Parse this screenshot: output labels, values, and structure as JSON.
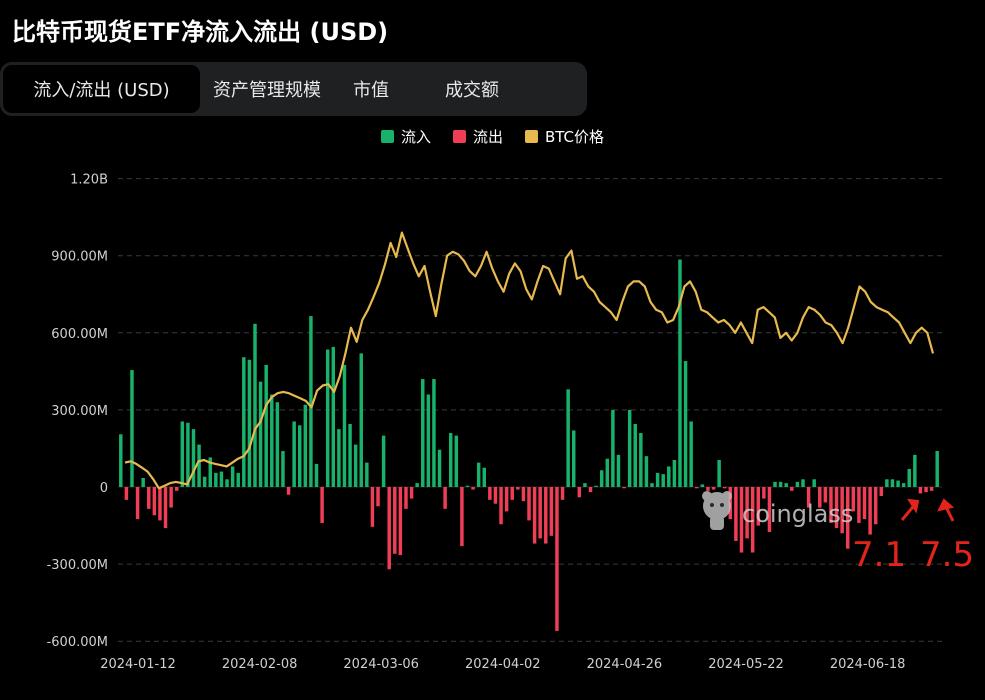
{
  "page": {
    "title": "比特币现货ETF净流入流出 (USD)"
  },
  "tabs": [
    {
      "label": "流入/流出 (USD)",
      "active": true
    },
    {
      "label": "资产管理规模",
      "active": false
    },
    {
      "label": "市值",
      "active": false
    },
    {
      "label": "成交额",
      "active": false
    }
  ],
  "legend": {
    "inflow": "流入",
    "outflow": "流出",
    "price": "BTC价格"
  },
  "watermark": {
    "text": "coinglass",
    "icon": "coinglass-logo-icon"
  },
  "annotations": [
    {
      "text": "7.1"
    },
    {
      "text": "7.5"
    }
  ],
  "colors": {
    "inflow": "#18b26b",
    "outflow": "#f03e57",
    "price": "#e8b94f",
    "grid": "#3a3a3a",
    "annotation": "#e3241b"
  },
  "chart_data": {
    "type": "bar",
    "title": "比特币现货ETF净流入流出 (USD)",
    "ylim": [
      -600000000,
      1200000000
    ],
    "yticks": [
      {
        "value": 1200000000,
        "label": "1.20B"
      },
      {
        "value": 900000000,
        "label": "900.00M"
      },
      {
        "value": 600000000,
        "label": "600.00M"
      },
      {
        "value": 300000000,
        "label": "300.00M"
      },
      {
        "value": 0,
        "label": "0"
      },
      {
        "value": -300000000,
        "label": "-300.00M"
      },
      {
        "value": -600000000,
        "label": "-600.00M"
      }
    ],
    "xticks": [
      {
        "index": 0,
        "label": "2024-01-12"
      },
      {
        "index": 16,
        "label": "2024-02-08"
      },
      {
        "index": 32,
        "label": "2024-03-06"
      },
      {
        "index": 48,
        "label": "2024-04-02"
      },
      {
        "index": 64,
        "label": "2024-04-26"
      },
      {
        "index": 80,
        "label": "2024-05-22"
      },
      {
        "index": 96,
        "label": "2024-06-18"
      }
    ],
    "grid": true,
    "legend_position": "top-center",
    "series": [
      {
        "name": "流入/流出",
        "kind": "bar",
        "values": [
          205,
          -50,
          455,
          -125,
          35,
          -85,
          -110,
          -130,
          -160,
          -80,
          -15,
          255,
          250,
          225,
          165,
          40,
          115,
          55,
          60,
          30,
          80,
          55,
          505,
          495,
          635,
          410,
          475,
          360,
          330,
          140,
          -30,
          255,
          240,
          320,
          665,
          90,
          -140,
          535,
          545,
          225,
          475,
          245,
          165,
          520,
          95,
          -155,
          -75,
          200,
          -320,
          -260,
          -265,
          -85,
          -45,
          15,
          420,
          360,
          420,
          145,
          -85,
          210,
          200,
          -230,
          5,
          -10,
          95,
          75,
          -50,
          -65,
          -145,
          -95,
          -50,
          -10,
          -55,
          -130,
          -220,
          -200,
          -220,
          -190,
          -560,
          -50,
          380,
          220,
          -40,
          15,
          -20,
          5,
          65,
          110,
          300,
          125,
          -5,
          300,
          245,
          210,
          120,
          15,
          55,
          50,
          80,
          105,
          885,
          490,
          255,
          -5,
          10,
          -15,
          -10,
          105,
          -5,
          -125,
          -210,
          -255,
          -200,
          -255,
          -150,
          -45,
          -175,
          20,
          20,
          15,
          -15,
          20,
          30,
          -80,
          30,
          -80,
          -60,
          -140,
          -160,
          -180,
          -240,
          -95,
          -140,
          -125,
          -185,
          -145,
          -35,
          30,
          30,
          25,
          15,
          70,
          125,
          -25,
          -20,
          -15,
          140
        ]
      },
      {
        "name": "BTC价格",
        "kind": "line",
        "values": [
          95,
          100,
          90,
          75,
          60,
          30,
          -5,
          5,
          15,
          20,
          15,
          10,
          55,
          100,
          105,
          95,
          90,
          85,
          80,
          95,
          110,
          120,
          150,
          225,
          255,
          320,
          350,
          365,
          370,
          365,
          355,
          345,
          335,
          310,
          375,
          395,
          400,
          370,
          430,
          520,
          620,
          565,
          650,
          690,
          740,
          795,
          865,
          950,
          895,
          990,
          930,
          870,
          820,
          860,
          760,
          665,
          790,
          900,
          915,
          905,
          880,
          840,
          820,
          860,
          915,
          850,
          800,
          760,
          830,
          870,
          840,
          770,
          730,
          800,
          860,
          850,
          800,
          750,
          890,
          920,
          810,
          820,
          780,
          760,
          720,
          700,
          680,
          650,
          720,
          780,
          800,
          800,
          780,
          720,
          690,
          680,
          640,
          650,
          700,
          780,
          800,
          760,
          690,
          680,
          660,
          640,
          650,
          630,
          600,
          640,
          600,
          560,
          690,
          700,
          680,
          660,
          580,
          600,
          570,
          600,
          660,
          700,
          690,
          670,
          640,
          630,
          600,
          560,
          620,
          700,
          780,
          760,
          720,
          700,
          690,
          680,
          660,
          640,
          600,
          560,
          600,
          620,
          600,
          520
        ]
      }
    ]
  }
}
